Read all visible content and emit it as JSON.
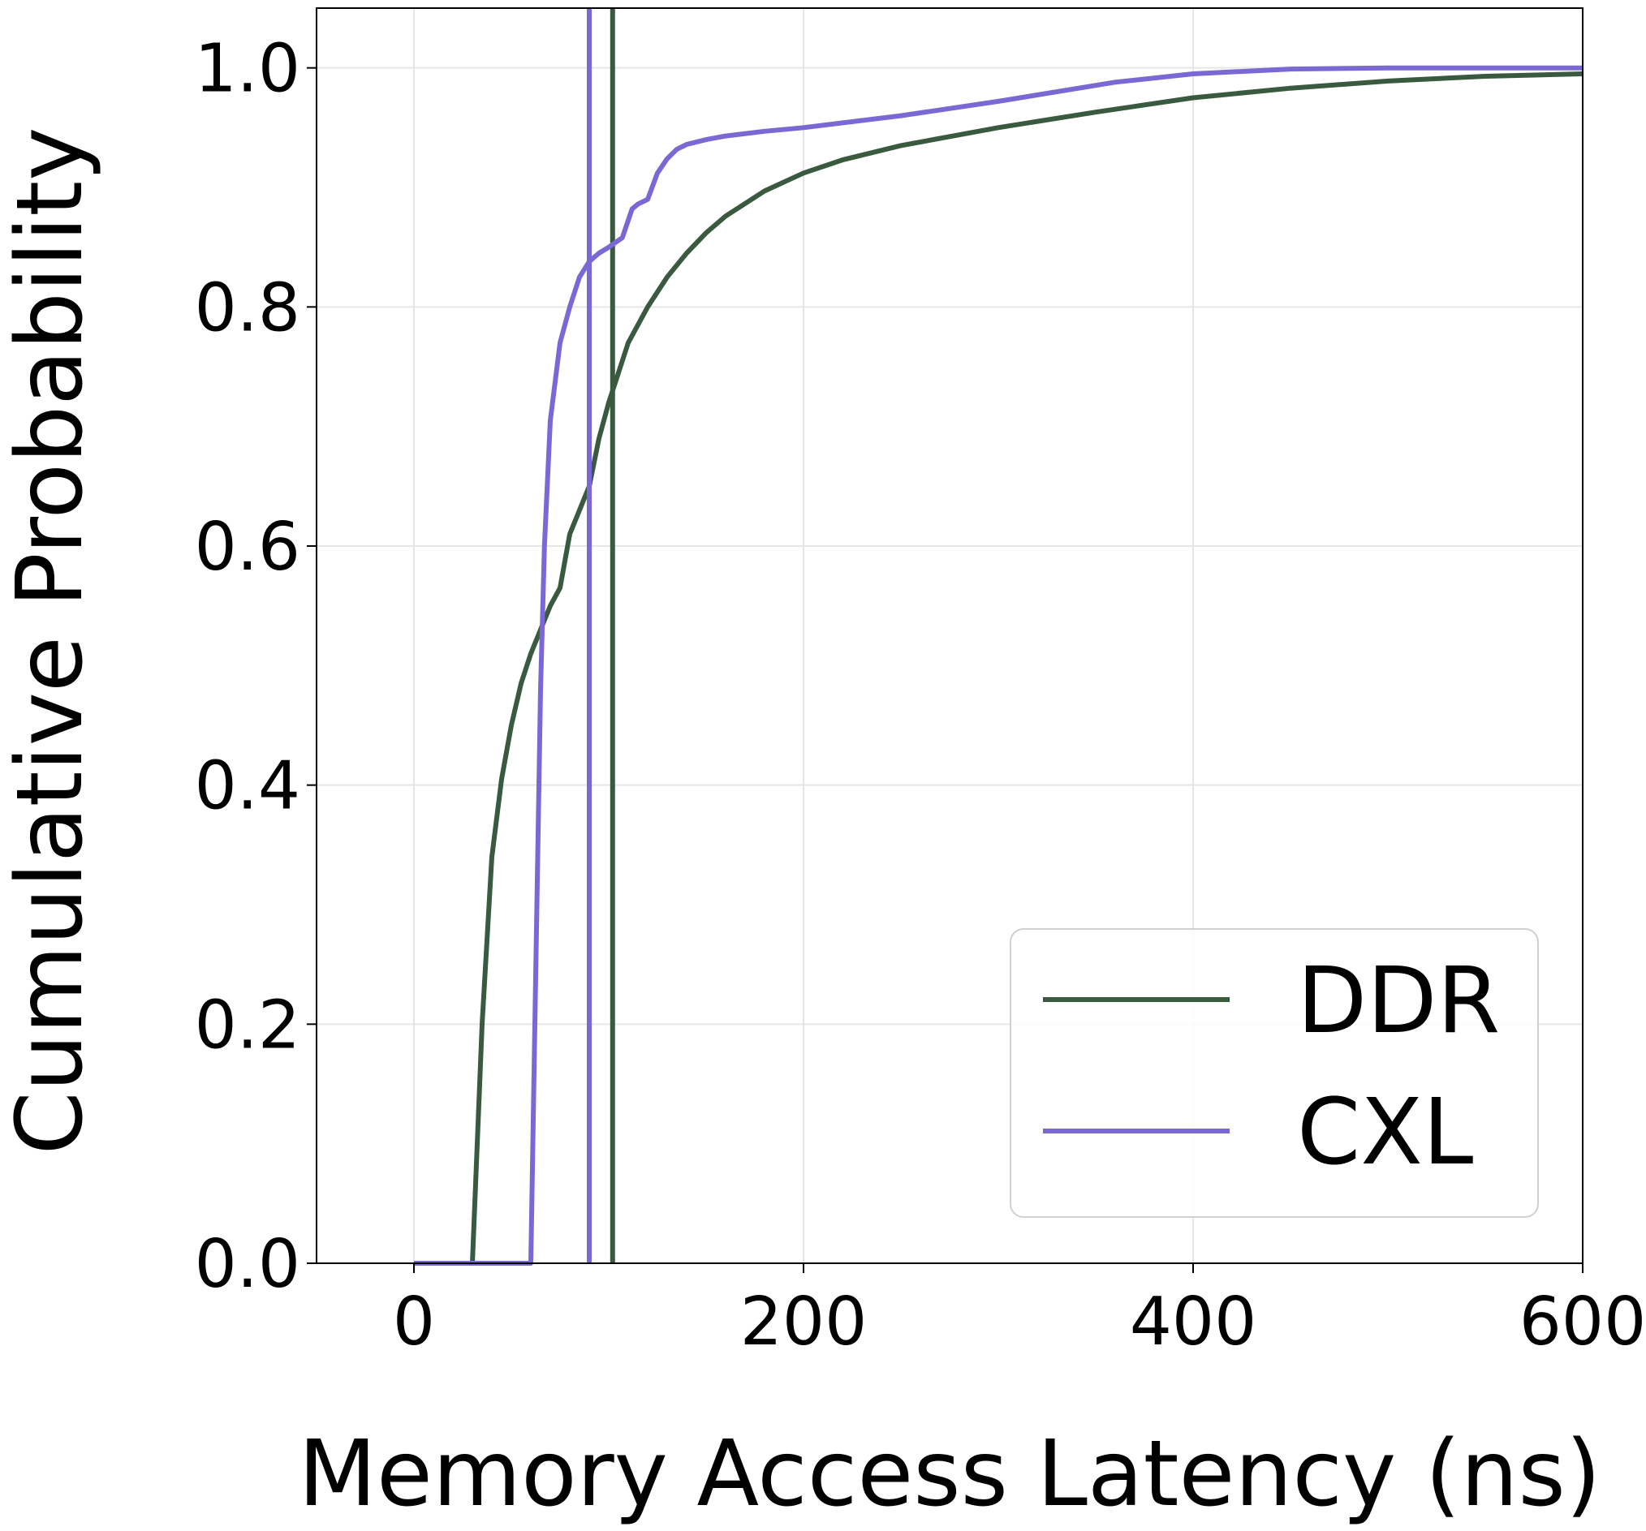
{
  "chart_data": {
    "type": "line",
    "title": "",
    "xlabel": "Memory Access Latency (ns)",
    "ylabel": "Cumulative Probability",
    "xlim": [
      -50,
      600
    ],
    "ylim": [
      0,
      1.05
    ],
    "xticks": [
      0,
      200,
      400,
      600
    ],
    "xtick_labels": [
      "0",
      "200",
      "400",
      "600"
    ],
    "yticks": [
      0.0,
      0.2,
      0.4,
      0.6,
      0.8,
      1.0
    ],
    "ytick_labels": [
      "0.0",
      "0.2",
      "0.4",
      "0.6",
      "0.8",
      "1.0"
    ],
    "grid": true,
    "legend_position": "bottom-right",
    "series": [
      {
        "name": "DDR",
        "color": "#3a5a40",
        "vline_x": 102,
        "x": [
          0,
          30,
          35,
          40,
          45,
          50,
          55,
          60,
          65,
          70,
          75,
          80,
          85,
          90,
          95,
          100,
          105,
          110,
          120,
          130,
          140,
          150,
          160,
          180,
          200,
          220,
          250,
          300,
          350,
          400,
          450,
          500,
          550,
          600
        ],
        "y": [
          0.0,
          0.0,
          0.2,
          0.34,
          0.405,
          0.45,
          0.485,
          0.51,
          0.53,
          0.55,
          0.565,
          0.61,
          0.63,
          0.65,
          0.69,
          0.72,
          0.745,
          0.77,
          0.8,
          0.825,
          0.845,
          0.862,
          0.876,
          0.897,
          0.912,
          0.923,
          0.935,
          0.95,
          0.963,
          0.975,
          0.983,
          0.989,
          0.993,
          0.995
        ]
      },
      {
        "name": "CXL",
        "color": "#7b68d4",
        "vline_x": 90,
        "x": [
          0,
          60,
          65,
          67,
          70,
          75,
          80,
          85,
          90,
          95,
          100,
          107,
          112,
          115,
          120,
          125,
          130,
          135,
          140,
          150,
          160,
          180,
          200,
          250,
          300,
          360,
          400,
          450,
          500,
          600
        ],
        "y": [
          0.0,
          0.0,
          0.48,
          0.6,
          0.705,
          0.77,
          0.8,
          0.825,
          0.838,
          0.845,
          0.85,
          0.858,
          0.882,
          0.886,
          0.89,
          0.912,
          0.924,
          0.932,
          0.936,
          0.94,
          0.943,
          0.947,
          0.95,
          0.96,
          0.972,
          0.988,
          0.995,
          0.999,
          1.0,
          1.0
        ]
      }
    ]
  }
}
